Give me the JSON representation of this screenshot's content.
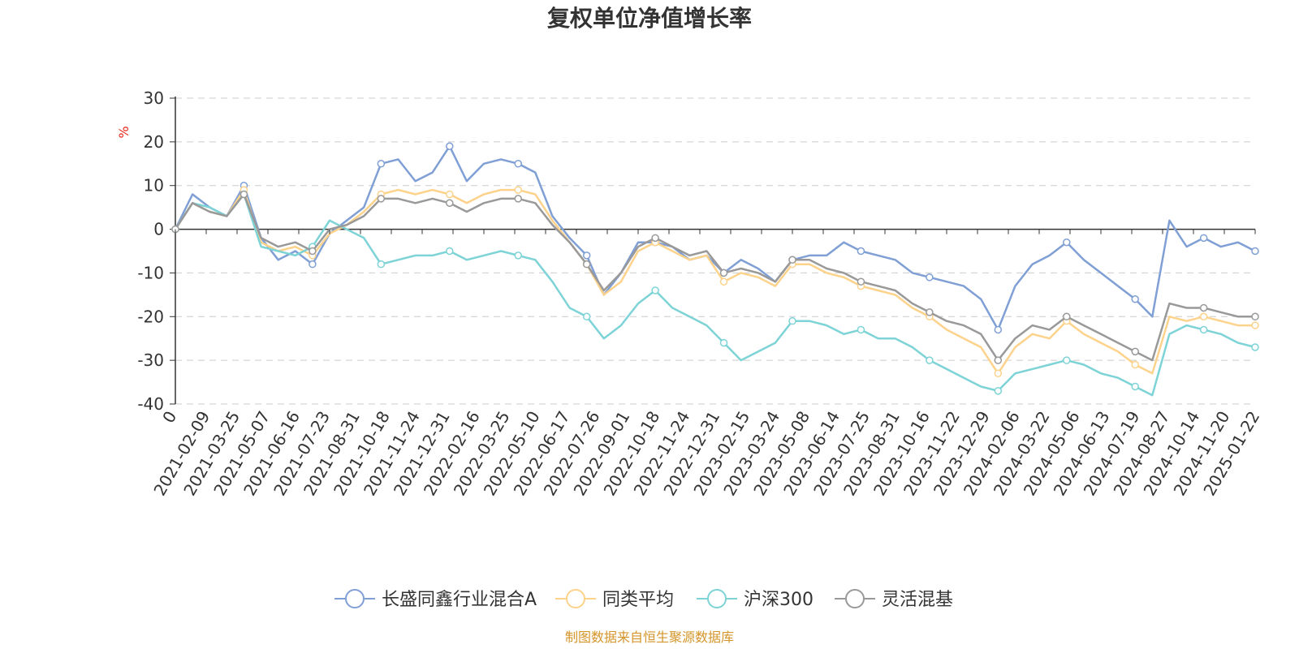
{
  "chart_data": {
    "type": "line",
    "title": "复权单位净值增长率",
    "ylabel": "%",
    "ylim": [
      -40,
      30
    ],
    "yticks": [
      30,
      20,
      10,
      0,
      -10,
      -20,
      -30,
      -40
    ],
    "origin_label": "0",
    "x_ticks": [
      "2021-02-09",
      "2021-03-25",
      "2021-05-07",
      "2021-06-16",
      "2021-07-23",
      "2021-08-31",
      "2021-10-18",
      "2021-11-24",
      "2021-12-31",
      "2022-02-16",
      "2022-03-25",
      "2022-05-10",
      "2022-06-17",
      "2022-07-26",
      "2022-09-01",
      "2022-10-18",
      "2022-11-24",
      "2022-12-31",
      "2023-02-15",
      "2023-03-24",
      "2023-05-08",
      "2023-06-14",
      "2023-07-25",
      "2023-08-31",
      "2023-10-16",
      "2023-11-22",
      "2023-12-29",
      "2024-02-06",
      "2024-03-22",
      "2024-05-06",
      "2024-06-13",
      "2024-07-19",
      "2024-08-27",
      "2024-10-14",
      "2024-11-20",
      "2025-01-22"
    ],
    "grid": true,
    "legend_position": "bottom",
    "series": [
      {
        "name": "长盛同鑫行业混合A",
        "color": "#7f9fd5",
        "values": [
          0,
          8,
          5,
          3,
          10,
          -2,
          -7,
          -5,
          -8,
          -1,
          2,
          5,
          15,
          16,
          11,
          13,
          19,
          11,
          15,
          16,
          15,
          13,
          3,
          -2,
          -6,
          -15,
          -10,
          -3,
          -3,
          -4,
          -7,
          -6,
          -10,
          -7,
          -9,
          -12,
          -7,
          -6,
          -6,
          -3,
          -5,
          -6,
          -7,
          -10,
          -11,
          -12,
          -13,
          -16,
          -23,
          -13,
          -8,
          -6,
          -3,
          -7,
          -10,
          -13,
          -16,
          -20,
          2,
          -4,
          -2,
          -4,
          -3,
          -5
        ]
      },
      {
        "name": "同类平均",
        "color": "#fdd28b",
        "values": [
          0,
          6,
          4,
          3,
          9,
          -3,
          -5,
          -4,
          -6,
          -1,
          1,
          4,
          8,
          9,
          8,
          9,
          8,
          6,
          8,
          9,
          9,
          8,
          2,
          -3,
          -8,
          -15,
          -12,
          -5,
          -3,
          -5,
          -7,
          -6,
          -12,
          -10,
          -11,
          -13,
          -8,
          -8,
          -10,
          -11,
          -13,
          -14,
          -15,
          -18,
          -20,
          -23,
          -25,
          -27,
          -33,
          -27,
          -24,
          -25,
          -21,
          -24,
          -26,
          -28,
          -31,
          -33,
          -20,
          -21,
          -20,
          -21,
          -22,
          -22
        ]
      },
      {
        "name": "沪深300",
        "color": "#7dd3d6",
        "values": [
          0,
          6,
          5,
          3,
          8,
          -4,
          -5,
          -6,
          -4,
          2,
          0,
          -2,
          -8,
          -7,
          -6,
          -6,
          -5,
          -7,
          -6,
          -5,
          -6,
          -7,
          -12,
          -18,
          -20,
          -25,
          -22,
          -17,
          -14,
          -18,
          -20,
          -22,
          -26,
          -30,
          -28,
          -26,
          -21,
          -21,
          -22,
          -24,
          -23,
          -25,
          -25,
          -27,
          -30,
          -32,
          -34,
          -36,
          -37,
          -33,
          -32,
          -31,
          -30,
          -31,
          -33,
          -34,
          -36,
          -38,
          -24,
          -22,
          -23,
          -24,
          -26,
          -27
        ]
      },
      {
        "name": "灵活混基",
        "color": "#999999",
        "values": [
          0,
          6,
          4,
          3,
          8,
          -2,
          -4,
          -3,
          -5,
          0,
          1,
          3,
          7,
          7,
          6,
          7,
          6,
          4,
          6,
          7,
          7,
          6,
          1,
          -3,
          -8,
          -14,
          -10,
          -4,
          -2,
          -4,
          -6,
          -5,
          -10,
          -9,
          -10,
          -12,
          -7,
          -7,
          -9,
          -10,
          -12,
          -13,
          -14,
          -17,
          -19,
          -21,
          -22,
          -24,
          -30,
          -25,
          -22,
          -23,
          -20,
          -22,
          -24,
          -26,
          -28,
          -30,
          -17,
          -18,
          -18,
          -19,
          -20,
          -20
        ]
      }
    ]
  },
  "source_text": "制图数据来自恒生聚源数据库"
}
